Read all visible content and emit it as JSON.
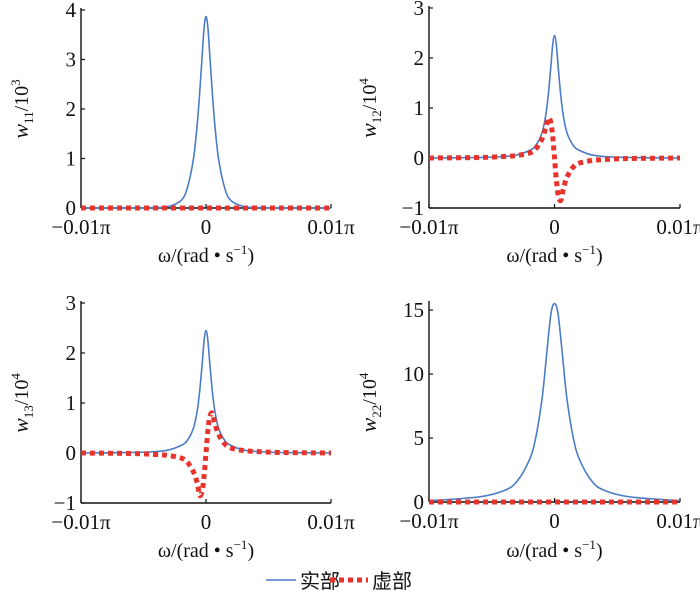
{
  "chart_data": [
    {
      "type": "line",
      "ylabel": {
        "var": "w",
        "sub": "11",
        "mid": "/10",
        "sup": "3"
      },
      "xlabel": {
        "pre": "ω/(rad • s",
        "sup": "−1",
        "post": ")"
      },
      "xticks": [
        "−0.01π",
        "0",
        "0.01π"
      ],
      "yticks": [
        "0",
        "1",
        "2",
        "3",
        "4"
      ],
      "xlim": [
        -1,
        1
      ],
      "x_unit": "0.01π rad/s",
      "ylim": [
        0,
        4
      ],
      "x": [
        -1,
        -0.6,
        -0.4,
        -0.3,
        -0.2,
        -0.15,
        -0.1,
        -0.07,
        -0.05,
        -0.03,
        -0.015,
        0,
        0.015,
        0.03,
        0.05,
        0.07,
        0.1,
        0.15,
        0.2,
        0.3,
        0.4,
        0.6,
        1
      ],
      "series": [
        {
          "name": "实部",
          "values": [
            0,
            0,
            0.01,
            0.03,
            0.15,
            0.4,
            1.0,
            1.7,
            2.35,
            3.1,
            3.65,
            3.87,
            3.65,
            3.1,
            2.35,
            1.7,
            1.0,
            0.4,
            0.15,
            0.03,
            0.01,
            0,
            0
          ]
        },
        {
          "name": "虚部",
          "values": [
            0,
            0,
            0,
            0,
            0,
            0,
            0,
            0,
            0,
            0,
            0,
            0,
            0,
            0,
            0,
            0,
            0,
            0,
            0,
            0,
            0,
            0,
            0
          ]
        }
      ]
    },
    {
      "type": "line",
      "ylabel": {
        "var": "w",
        "sub": "12",
        "mid": "/10",
        "sup": "4"
      },
      "xlabel": {
        "pre": "ω/(rad • s",
        "sup": "−1",
        "post": ")"
      },
      "xticks": [
        "−0.01π",
        "0",
        "0.01π"
      ],
      "yticks": [
        "−1",
        "0",
        "1",
        "2",
        "3"
      ],
      "xlim": [
        -1,
        1
      ],
      "x_unit": "0.01π rad/s",
      "ylim": [
        -1,
        3
      ],
      "x": [
        -1,
        -0.6,
        -0.4,
        -0.3,
        -0.2,
        -0.15,
        -0.1,
        -0.07,
        -0.05,
        -0.03,
        -0.015,
        0,
        0.015,
        0.03,
        0.05,
        0.07,
        0.1,
        0.15,
        0.2,
        0.3,
        0.4,
        0.6,
        1
      ],
      "series": [
        {
          "name": "实部",
          "values": [
            0,
            0.01,
            0.03,
            0.06,
            0.15,
            0.25,
            0.5,
            0.85,
            1.25,
            1.8,
            2.25,
            2.45,
            2.25,
            1.8,
            1.25,
            0.85,
            0.5,
            0.25,
            0.15,
            0.06,
            0.03,
            0.01,
            0
          ]
        },
        {
          "name": "虚部",
          "values": [
            0,
            0.01,
            0.03,
            0.05,
            0.1,
            0.18,
            0.38,
            0.6,
            0.8,
            0.72,
            0.45,
            0,
            -0.45,
            -0.75,
            -0.85,
            -0.62,
            -0.38,
            -0.18,
            -0.1,
            -0.05,
            -0.03,
            -0.01,
            0
          ]
        }
      ]
    },
    {
      "type": "line",
      "ylabel": {
        "var": "w",
        "sub": "13",
        "mid": "/10",
        "sup": "4"
      },
      "xlabel": {
        "pre": "ω/(rad • s",
        "sup": "−1",
        "post": ")"
      },
      "xticks": [
        "−0.01π",
        "0",
        "0.01π"
      ],
      "yticks": [
        "−1",
        "0",
        "1",
        "2",
        "3"
      ],
      "xlim": [
        -1,
        1
      ],
      "x_unit": "0.01π rad/s",
      "ylim": [
        -1,
        3
      ],
      "x": [
        -1,
        -0.6,
        -0.4,
        -0.3,
        -0.2,
        -0.15,
        -0.1,
        -0.07,
        -0.05,
        -0.03,
        -0.015,
        0,
        0.015,
        0.03,
        0.05,
        0.07,
        0.1,
        0.15,
        0.2,
        0.3,
        0.4,
        0.6,
        1
      ],
      "series": [
        {
          "name": "实部",
          "values": [
            0,
            0.01,
            0.03,
            0.06,
            0.15,
            0.25,
            0.5,
            0.85,
            1.25,
            1.8,
            2.25,
            2.45,
            2.25,
            1.8,
            1.25,
            0.85,
            0.5,
            0.25,
            0.15,
            0.06,
            0.03,
            0.01,
            0
          ]
        },
        {
          "name": "虚部",
          "values": [
            0,
            -0.01,
            -0.03,
            -0.05,
            -0.1,
            -0.18,
            -0.38,
            -0.6,
            -0.85,
            -0.75,
            -0.45,
            0,
            0.45,
            0.72,
            0.8,
            0.6,
            0.38,
            0.18,
            0.1,
            0.05,
            0.03,
            0.01,
            0
          ]
        }
      ]
    },
    {
      "type": "line",
      "ylabel": {
        "var": "w",
        "sub": "22",
        "mid": "/10",
        "sup": "4"
      },
      "xlabel": {
        "pre": "ω/(rad • s",
        "sup": "−1",
        "post": ")"
      },
      "xticks": [
        "−0.01π",
        "0",
        "0.01π"
      ],
      "yticks": [
        "0",
        "5",
        "10",
        "15"
      ],
      "ytick_values": [
        0,
        5,
        10,
        15
      ],
      "xlim": [
        -1,
        1
      ],
      "x_unit": "0.01π rad/s",
      "ylim": [
        0,
        16.5
      ],
      "x": [
        -1,
        -0.6,
        -0.4,
        -0.3,
        -0.2,
        -0.15,
        -0.1,
        -0.07,
        -0.05,
        -0.03,
        -0.015,
        0,
        0.015,
        0.03,
        0.05,
        0.07,
        0.1,
        0.15,
        0.2,
        0.3,
        0.4,
        0.6,
        1
      ],
      "series": [
        {
          "name": "实部",
          "values": [
            0.1,
            0.4,
            0.9,
            1.6,
            3.3,
            5.0,
            8.0,
            10.8,
            12.8,
            14.6,
            15.3,
            15.5,
            15.3,
            14.6,
            12.8,
            10.8,
            8.0,
            5.0,
            3.3,
            1.6,
            0.9,
            0.4,
            0.1
          ]
        },
        {
          "name": "虚部",
          "values": [
            0,
            0,
            0,
            0,
            0,
            0,
            0,
            0,
            0,
            0,
            0,
            0,
            0,
            0,
            0,
            0,
            0,
            0,
            0,
            0,
            0,
            0,
            0
          ]
        }
      ]
    }
  ],
  "legend": {
    "items": [
      "实部",
      "虚部"
    ],
    "placement": "bottom-center"
  },
  "colors": {
    "real": "#4a7cc8",
    "imag": "#e8332b",
    "axis": "#111111"
  }
}
